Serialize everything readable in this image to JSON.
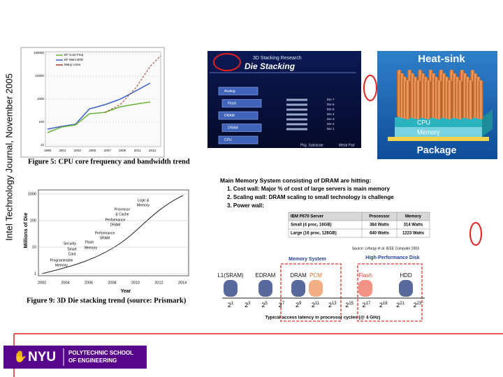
{
  "side_note": "Intel Technology Journal, November 2005",
  "figure5": {
    "legend": [
      "EF Core Freq",
      "EF Mem B/W",
      "Many cores"
    ],
    "yticks": [
      "100000",
      "10000",
      "1000",
      "100",
      "10"
    ],
    "xticks": [
      "1999",
      "2001",
      "2003",
      "2005",
      "2007",
      "2009",
      "2011",
      "2013"
    ],
    "caption": "Figure 5: CPU core frequency and bandwidth trend"
  },
  "die_stacking": {
    "header": "3D Stacking Research",
    "title": "Die Stacking",
    "layers": [
      "Analog",
      "Flash",
      "DRAM",
      "DRAM",
      "CPU"
    ],
    "dies": [
      "Die 7",
      "Die 6",
      "Die 5",
      "Die 4",
      "Die 3",
      "Die 2",
      "Die 1"
    ],
    "substrate": "Pkg. Substrate",
    "pad": "Metal Pad"
  },
  "heat_sink": {
    "title": "Heat-sink",
    "cpu": "CPU",
    "memory": "Memory",
    "package": "Package"
  },
  "figure9": {
    "y_label": "Millions of Die",
    "yticks": [
      "1000",
      "100",
      "10",
      "1"
    ],
    "xticks": [
      "2002",
      "2004",
      "2006",
      "2008",
      "2010",
      "2012",
      "2014"
    ],
    "x_label": "Year",
    "annotations": [
      "Logic &",
      "Memory",
      "Processor",
      "& Cache",
      "Performance",
      "DRAM",
      "Performance",
      "SRAM",
      "Security",
      "Flash",
      "Smart",
      "Memory",
      "Card",
      "Programmable",
      "Memory"
    ],
    "caption": "Figure 9: 3D Die stacking trend (source: Prismark)"
  },
  "memory_wall": {
    "heading": "Main Memory System consisting of DRAM are hitting:",
    "items": [
      "1. Cost wall:  Major % of cost of large servers is main memory",
      "2. Scaling wall:  DRAM scaling to small technology is challenge",
      "3. Power wall:"
    ],
    "table": {
      "header": [
        "IBM P670 Server",
        "Processor",
        "Memory"
      ],
      "rows": [
        [
          "Small (4 proc, 16GB)",
          "384 Watts",
          "314 Watts"
        ],
        [
          "Large (16 proc, 128GB)",
          "640 Watts",
          "1223 Watts"
        ]
      ]
    },
    "source": "Source: Lefurgy et al. IEEE Computer 2003"
  },
  "hierarchy": {
    "memory_system": "Memory System",
    "disk": "High-Performance Disk",
    "tiers": [
      "L1(SRAM)",
      "EDRAM",
      "DRAM",
      "PCM",
      "Flash",
      "HDD"
    ],
    "latency": [
      {
        "base": "2",
        "exp": "1"
      },
      {
        "base": "2",
        "exp": "3"
      },
      {
        "base": "2",
        "exp": "5"
      },
      {
        "base": "2",
        "exp": "7"
      },
      {
        "base": "2",
        "exp": "9"
      },
      {
        "base": "2",
        "exp": "11"
      },
      {
        "base": "2",
        "exp": "13"
      },
      {
        "base": "2",
        "exp": "15"
      },
      {
        "base": "2",
        "exp": "17"
      },
      {
        "base": "2",
        "exp": "19"
      },
      {
        "base": "2",
        "exp": "21"
      },
      {
        "base": "2",
        "exp": "23"
      }
    ],
    "axis_label": "Typical access latency in processor cycles (@ 4 GHz)"
  },
  "logo": {
    "mark": "NYU",
    "school": [
      "POLYTECHNIC SCHOOL",
      "OF ENGINEERING"
    ]
  }
}
